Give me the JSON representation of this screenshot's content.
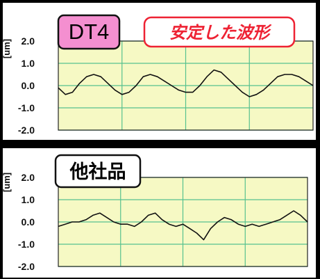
{
  "chart_data": [
    {
      "type": "line",
      "badge": "DT4",
      "callout": "安定した波形",
      "ylabel": "[um]",
      "yticks": [
        "2.0",
        "1.0",
        "0.0",
        "-1.0",
        "-2.0"
      ],
      "ylim": [
        -2.0,
        2.0
      ],
      "xlim": [
        0,
        36
      ],
      "grid": true,
      "series": [
        {
          "x": [
            0,
            1,
            2,
            3,
            4,
            5,
            6,
            7,
            8,
            9,
            10,
            11,
            12,
            13,
            14,
            15,
            16,
            17,
            18,
            19,
            20,
            21,
            22,
            23,
            24,
            25,
            26,
            27,
            28,
            29,
            30,
            31,
            32,
            33,
            34,
            35,
            36
          ],
          "values": [
            -0.1,
            -0.4,
            -0.3,
            0.1,
            0.4,
            0.5,
            0.4,
            0.1,
            -0.2,
            -0.4,
            -0.3,
            0.0,
            0.4,
            0.5,
            0.4,
            0.2,
            0.0,
            -0.2,
            -0.3,
            -0.3,
            0.0,
            0.4,
            0.7,
            0.6,
            0.3,
            0.0,
            -0.3,
            -0.5,
            -0.4,
            -0.2,
            0.1,
            0.4,
            0.5,
            0.5,
            0.4,
            0.2,
            0.0
          ]
        }
      ]
    },
    {
      "type": "line",
      "badge": "他社品",
      "ylabel": "[um]",
      "yticks": [
        "2.0",
        "1.0",
        "0.0",
        "-1.0",
        "-2.0"
      ],
      "ylim": [
        -2.0,
        2.0
      ],
      "xlim": [
        0,
        36
      ],
      "grid": true,
      "series": [
        {
          "x": [
            0,
            1,
            2,
            3,
            4,
            5,
            6,
            7,
            8,
            9,
            10,
            11,
            12,
            13,
            14,
            15,
            16,
            17,
            18,
            19,
            20,
            21,
            22,
            23,
            24,
            25,
            26,
            27,
            28,
            29,
            30,
            31,
            32,
            33,
            34,
            35,
            36
          ],
          "values": [
            -0.2,
            -0.1,
            0.0,
            0.0,
            0.1,
            0.3,
            0.4,
            0.2,
            0.0,
            -0.1,
            -0.1,
            -0.2,
            0.0,
            0.3,
            0.4,
            0.1,
            -0.1,
            -0.2,
            -0.1,
            -0.3,
            -0.5,
            -0.8,
            -0.3,
            0.0,
            0.2,
            0.1,
            -0.1,
            -0.2,
            -0.1,
            -0.2,
            -0.1,
            0.0,
            0.1,
            0.3,
            0.5,
            0.3,
            0.0
          ]
        }
      ]
    }
  ],
  "colors": {
    "plot_bg": "#f6f9c4",
    "grid": "#56c18f",
    "axis": "#222222",
    "line": "#111111",
    "badge_dt4_bg": "#f48fd0",
    "badge_other_bg": "#ffffff",
    "callout_text": "#ee2233",
    "callout_border": "#ee2233"
  }
}
